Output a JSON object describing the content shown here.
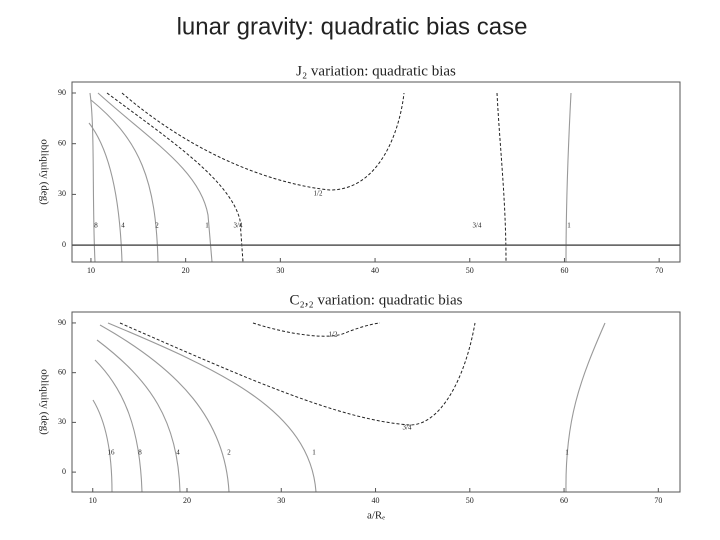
{
  "title": "lunar gravity: quadratic bias case",
  "chart_data": [
    {
      "type": "contour",
      "title": "J₂ variation: quadratic bias",
      "ylabel": "obliquity (deg)",
      "xlim": [
        8,
        72.2
      ],
      "ylim": [
        -10,
        96.5
      ],
      "xticks": [
        10,
        20,
        30,
        40,
        50,
        60,
        70
      ],
      "yticks": [
        0,
        30,
        60,
        90
      ],
      "contour_labels": [
        "8",
        "4",
        "2",
        "1",
        "3/4",
        "1/2",
        "3/4",
        "1"
      ]
    },
    {
      "type": "contour",
      "title": "C₂,₂ variation: quadratic bias",
      "ylabel": "obliquity (deg)",
      "xlabel": "a/Rₑ",
      "xlim": [
        7.8,
        72.3
      ],
      "ylim": [
        -12,
        96.6
      ],
      "xticks": [
        10,
        20,
        30,
        40,
        50,
        60,
        70
      ],
      "yticks": [
        0,
        30,
        60,
        90
      ],
      "contour_labels": [
        "16",
        "8",
        "4",
        "2",
        "1",
        "1/2",
        "3/4",
        "1"
      ]
    }
  ]
}
